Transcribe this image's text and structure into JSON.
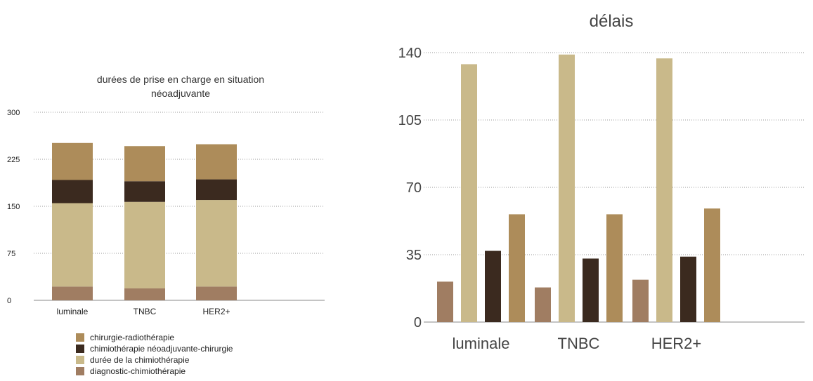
{
  "chart_data": [
    {
      "type": "bar",
      "stacked": true,
      "title": [
        "durées de prise en charge en situation",
        "néoadjuvante"
      ],
      "categories": [
        "luminale",
        "TNBC",
        "HER2+"
      ],
      "ylim": [
        0,
        300
      ],
      "yticks": [
        0,
        75,
        150,
        225,
        300
      ],
      "grid": true,
      "legend_position": "bottom-left",
      "series": [
        {
          "name": "diagnostic-chimiothérapie",
          "color": "#a07d62",
          "values": [
            22,
            19,
            22
          ]
        },
        {
          "name": "durée de la chimiothérapie",
          "color": "#c9b98a",
          "values": [
            133,
            138,
            138
          ]
        },
        {
          "name": "chimiothérapie néoadjuvante-chirurgie",
          "color": "#3b2a1f",
          "values": [
            37,
            33,
            33
          ]
        },
        {
          "name": "chirurgie-radiothérapie",
          "color": "#ad8c5a",
          "values": [
            59,
            56,
            56
          ]
        }
      ],
      "legend_order": [
        3,
        2,
        1,
        0
      ]
    },
    {
      "type": "bar",
      "stacked": false,
      "title": "délais",
      "categories": [
        "luminale",
        "TNBC",
        "HER2+"
      ],
      "ylim": [
        0,
        140
      ],
      "yticks": [
        0,
        35,
        70,
        105,
        140
      ],
      "grid": true,
      "series": [
        {
          "color": "#a07d62",
          "values": [
            21,
            18,
            22
          ]
        },
        {
          "color": "#c9b98a",
          "values": [
            134,
            139,
            137
          ]
        },
        {
          "color": "#3b2a1f",
          "values": [
            37,
            33,
            34
          ]
        },
        {
          "color": "#ad8c5a",
          "values": [
            56,
            56,
            59
          ]
        }
      ]
    }
  ]
}
